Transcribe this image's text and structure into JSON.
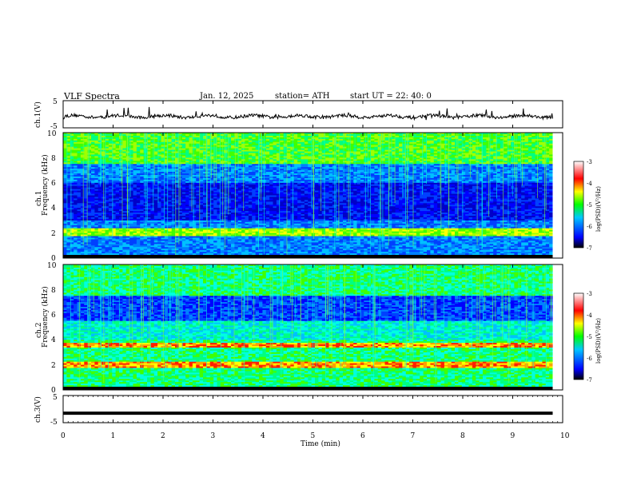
{
  "header": {
    "title": "VLF  Spectra",
    "date": "Jan.  12,  2025",
    "station": "station= ATH",
    "start": "start  UT  =    22: 40: 0"
  },
  "chart_data": [
    {
      "type": "line",
      "name": "ch1-waveform",
      "ylabel": "ch.1(V)",
      "ylim": [
        -5,
        5
      ],
      "yticks": [
        "5",
        "-5"
      ],
      "xlim": [
        0,
        10
      ],
      "description_level": "fluctuating around -0.8 V with spikes"
    },
    {
      "type": "heatmap",
      "name": "ch1-spectrogram",
      "ylabel": "ch.1\nFrequency (kHz)",
      "ylim": [
        0,
        10
      ],
      "yticks": [
        "0",
        "2",
        "4",
        "6",
        "8",
        "10"
      ],
      "xlim": [
        0,
        9.8
      ],
      "colorbar": {
        "label": "log(PSD)(V²/Hz)",
        "range": [
          -7,
          -3
        ],
        "ticks": [
          "-3",
          "-4",
          "-5",
          "-6",
          "-7"
        ],
        "colors": [
          "#000000",
          "#0000ff",
          "#00c8ff",
          "#00ff00",
          "#ffff00",
          "#ff0000",
          "#ffffff"
        ]
      }
    },
    {
      "type": "heatmap",
      "name": "ch2-spectrogram",
      "ylabel": "ch.2\nFrequency (kHz)",
      "ylim": [
        0,
        10
      ],
      "yticks": [
        "0",
        "2",
        "4",
        "6",
        "8",
        "10"
      ],
      "xlim": [
        0,
        9.8
      ],
      "colorbar": {
        "label": "log(PSD)(V²/Hz)",
        "range": [
          -7,
          -3
        ],
        "ticks": [
          "-3",
          "-4",
          "-5",
          "-6",
          "-7"
        ],
        "colors": [
          "#000000",
          "#0000ff",
          "#00c8ff",
          "#00ff00",
          "#ffff00",
          "#ff0000",
          "#ffffff"
        ]
      }
    },
    {
      "type": "line",
      "name": "ch3-waveform",
      "ylabel": "ch.3(V)",
      "ylim": [
        -5,
        5
      ],
      "yticks": [
        "5",
        "-5"
      ],
      "xlim": [
        0,
        10
      ],
      "description_level": "flat at about -1.5 V"
    }
  ],
  "xaxis": {
    "label": "Time  (min)",
    "ticks": [
      "0",
      "1",
      "2",
      "3",
      "4",
      "5",
      "6",
      "7",
      "8",
      "9",
      "10"
    ]
  }
}
